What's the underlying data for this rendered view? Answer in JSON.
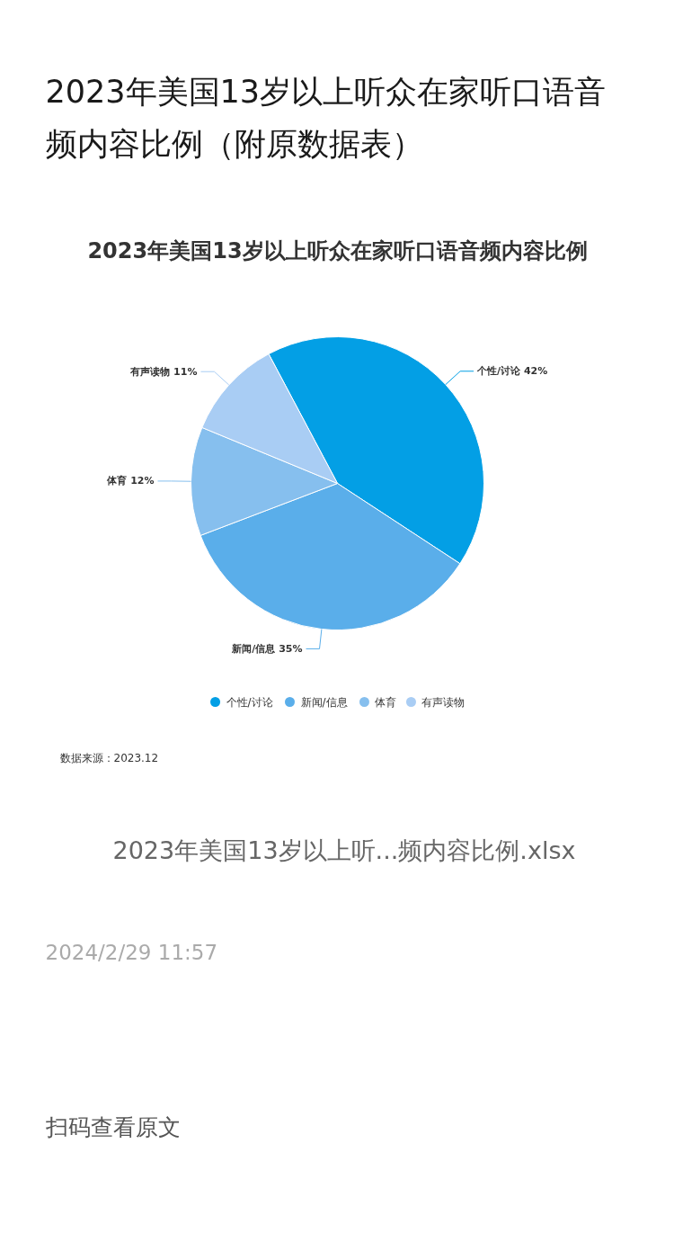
{
  "chart_data": {
    "type": "pie",
    "title": "2023年美国13岁以上听众在家听口语音频内容比例",
    "categories": [
      "个性/讨论",
      "新闻/信息",
      "体育",
      "有声读物"
    ],
    "values": [
      42,
      35,
      12,
      11
    ],
    "colors": [
      "#039fe5",
      "#5aaeea",
      "#86bfee",
      "#a9cdf4"
    ],
    "value_labels": [
      "个性/讨论 42%",
      "新闻/信息 35%",
      "体育 12%",
      "有声读物 11%"
    ],
    "legend": "bottom",
    "annotations": [
      "2023年美国13岁以上听众在家听口语音频内容比例（附原数据表）",
      "数据来源：2023.12",
      "2023年美国13岁以上听...频内容比例.xlsx",
      "2024/2/29 11:57",
      "扫码查看原文"
    ]
  }
}
